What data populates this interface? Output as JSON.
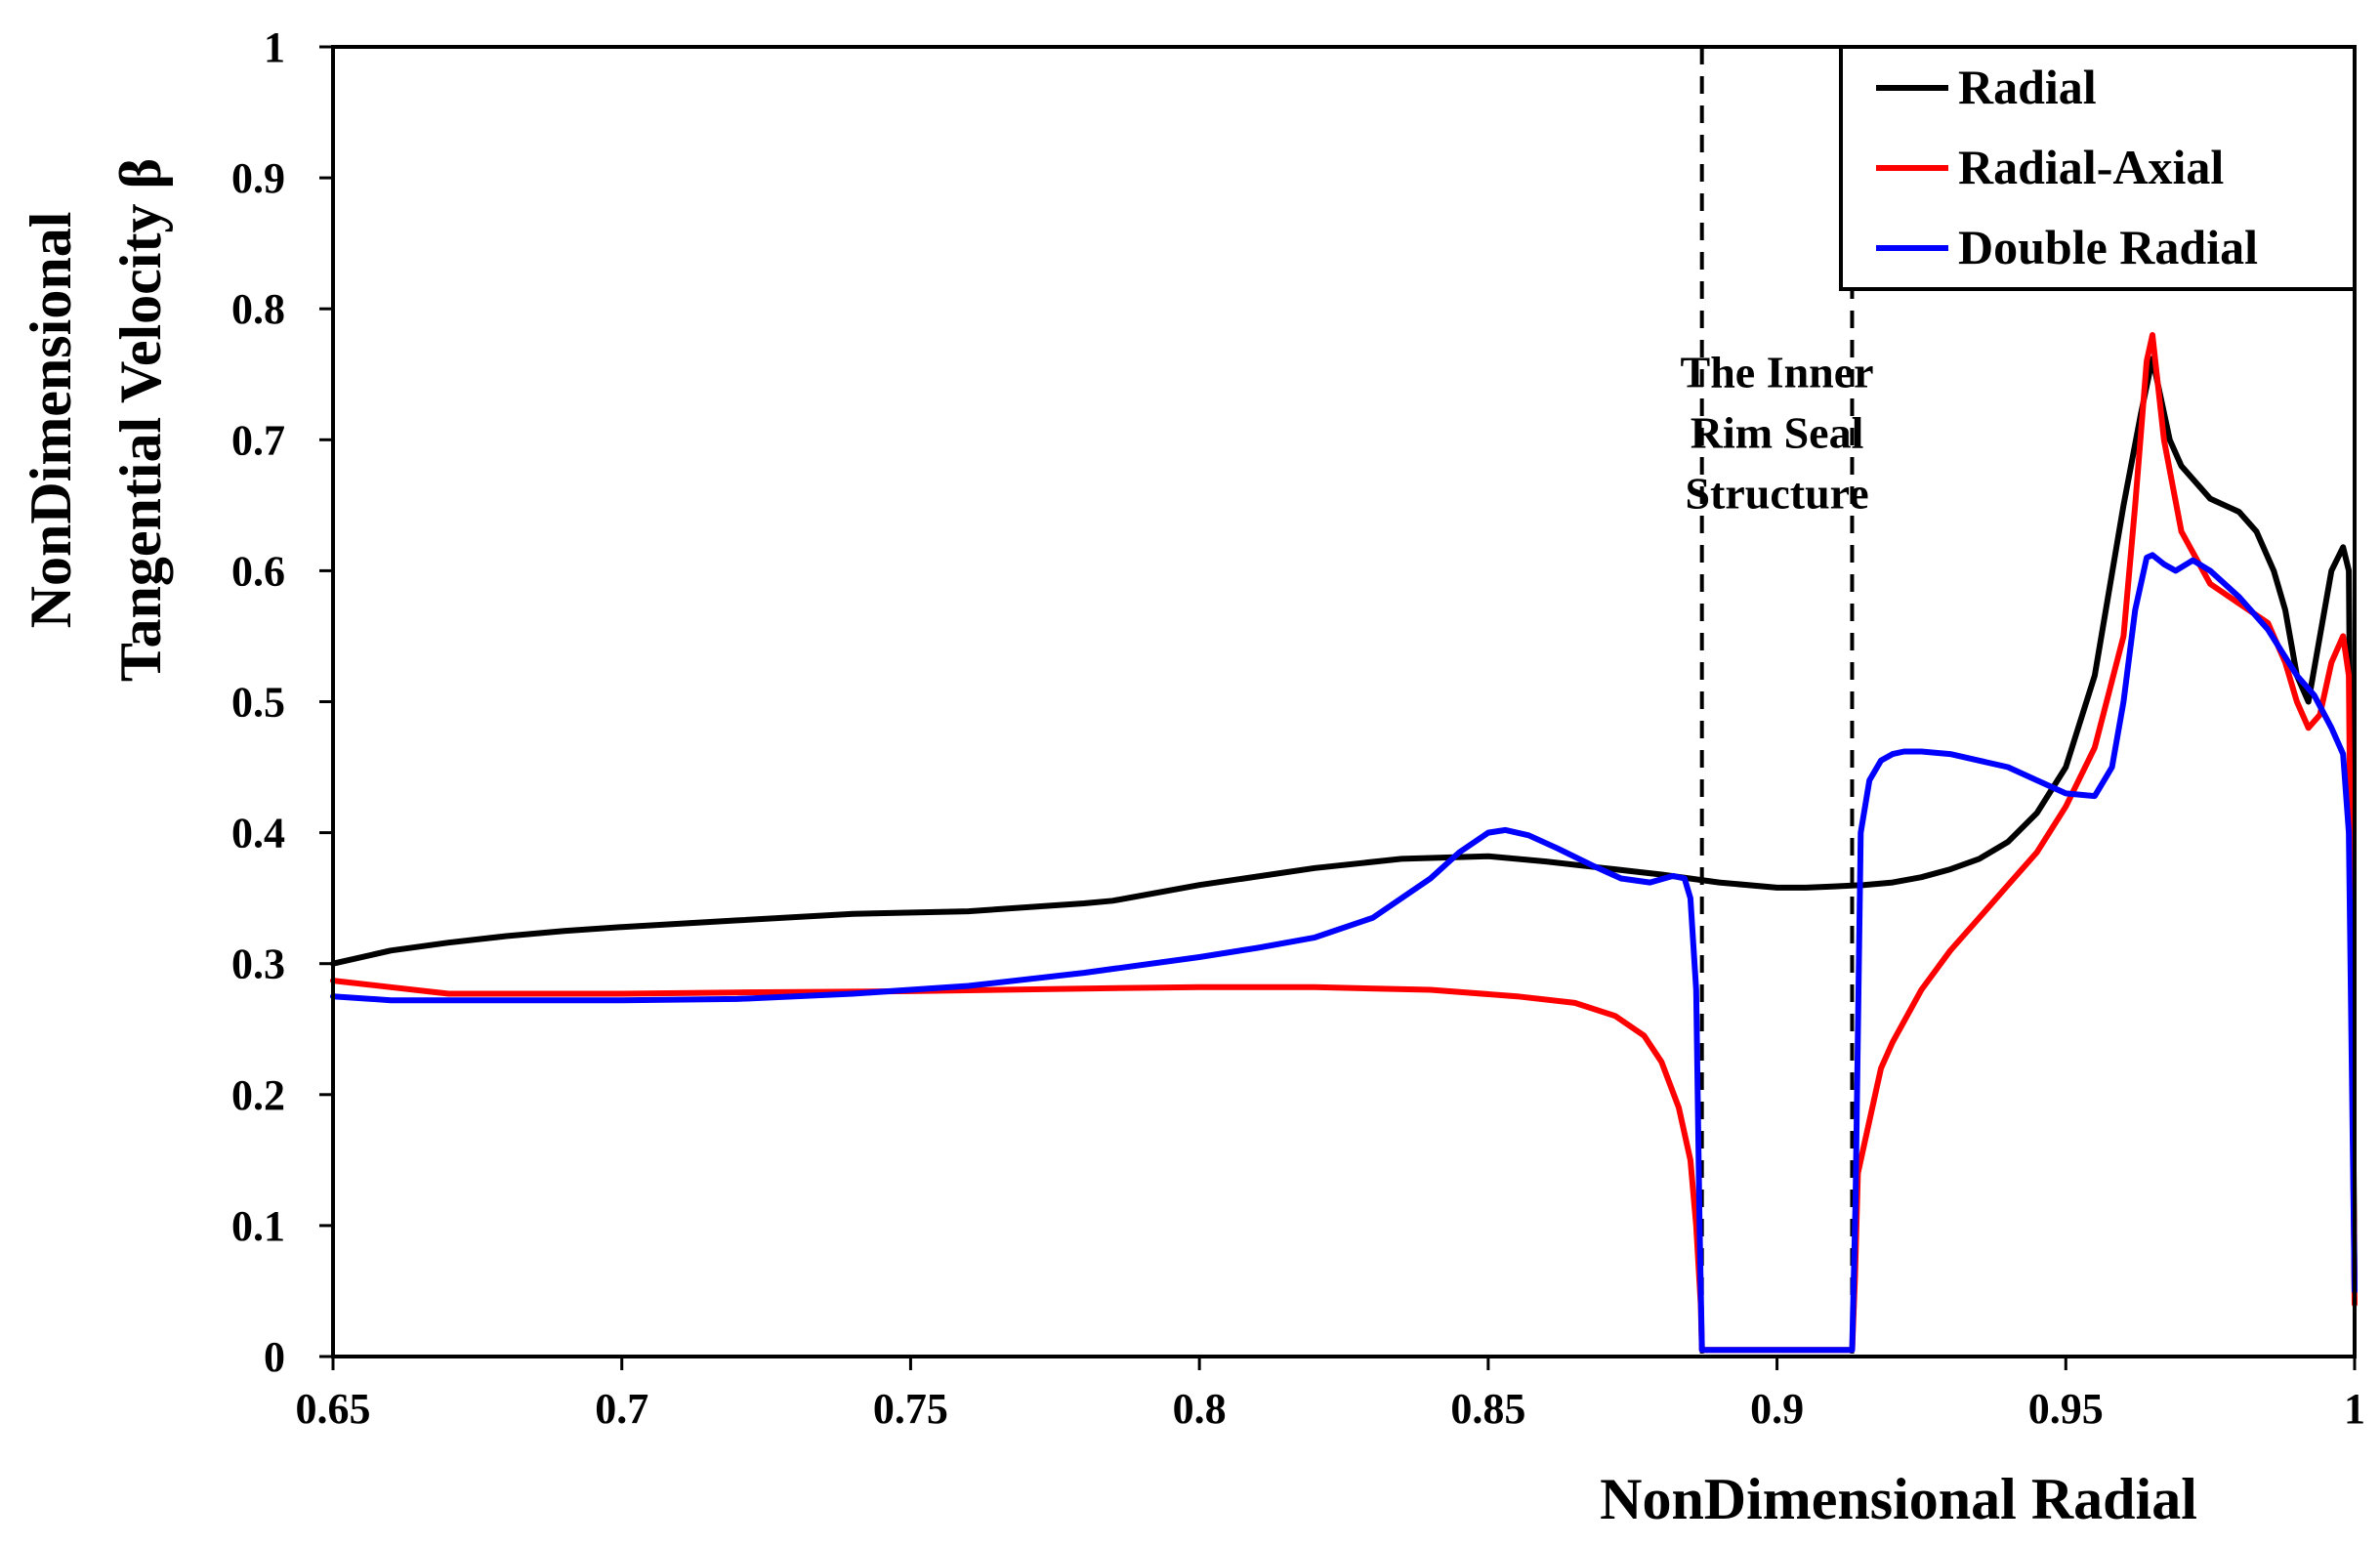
{
  "chart_data": {
    "type": "line",
    "xlabel": "NonDimensional Radial",
    "ylabel_lines": [
      "NonDimensional",
      "Tangential Velocity β"
    ],
    "xlim": [
      0.65,
      1.0
    ],
    "ylim": [
      0,
      1.0
    ],
    "x_ticks": [
      0.65,
      0.7,
      0.75,
      0.8,
      0.85,
      0.9,
      0.95,
      1.0
    ],
    "x_tick_labels": [
      "0.65",
      "0.7",
      "0.75",
      "0.8",
      "0.85",
      "0.9",
      "0.95",
      "1"
    ],
    "y_ticks": [
      0,
      0.1,
      0.2,
      0.3,
      0.4,
      0.5,
      0.6,
      0.7,
      0.8,
      0.9,
      1.0
    ],
    "y_tick_labels": [
      "0",
      "0.1",
      "0.2",
      "0.3",
      "0.4",
      "0.5",
      "0.6",
      "0.7",
      "0.8",
      "0.9",
      "1"
    ],
    "grid": false,
    "legend_position": "top-right",
    "reference_lines": [
      {
        "type": "vertical",
        "x": 0.887,
        "style": "dashed",
        "color": "#000000"
      },
      {
        "type": "vertical",
        "x": 0.913,
        "style": "dashed",
        "color": "#000000"
      }
    ],
    "annotation": {
      "lines": [
        "The Inner",
        "Rim Seal",
        "Structure"
      ],
      "x": 0.9,
      "y_top": 0.74
    },
    "series": [
      {
        "name": "Radial",
        "color": "#000000",
        "x": [
          0.65,
          0.66,
          0.67,
          0.68,
          0.69,
          0.7,
          0.72,
          0.74,
          0.76,
          0.78,
          0.785,
          0.8,
          0.82,
          0.835,
          0.85,
          0.86,
          0.87,
          0.88,
          0.89,
          0.9,
          0.905,
          0.91,
          0.915,
          0.92,
          0.925,
          0.93,
          0.935,
          0.94,
          0.945,
          0.95,
          0.955,
          0.96,
          0.963,
          0.965,
          0.968,
          0.97,
          0.975,
          0.98,
          0.983,
          0.986,
          0.988,
          0.99,
          0.992,
          0.994,
          0.996,
          0.998,
          0.999,
          1.0
        ],
        "y": [
          0.3,
          0.31,
          0.316,
          0.321,
          0.325,
          0.328,
          0.333,
          0.338,
          0.34,
          0.346,
          0.348,
          0.36,
          0.373,
          0.38,
          0.382,
          0.378,
          0.373,
          0.368,
          0.362,
          0.358,
          0.358,
          0.359,
          0.36,
          0.362,
          0.366,
          0.372,
          0.38,
          0.393,
          0.415,
          0.45,
          0.52,
          0.65,
          0.72,
          0.762,
          0.7,
          0.68,
          0.655,
          0.645,
          0.63,
          0.6,
          0.57,
          0.52,
          0.5,
          0.55,
          0.6,
          0.618,
          0.6,
          0.05
        ]
      },
      {
        "name": "Radial-Axial",
        "color": "#ff0000",
        "x": [
          0.65,
          0.66,
          0.67,
          0.68,
          0.7,
          0.72,
          0.75,
          0.78,
          0.8,
          0.82,
          0.84,
          0.855,
          0.865,
          0.872,
          0.877,
          0.88,
          0.883,
          0.885,
          0.886,
          0.8868,
          0.887,
          0.913,
          0.9135,
          0.914,
          0.916,
          0.918,
          0.92,
          0.925,
          0.93,
          0.935,
          0.94,
          0.945,
          0.95,
          0.955,
          0.96,
          0.962,
          0.964,
          0.965,
          0.967,
          0.97,
          0.975,
          0.98,
          0.985,
          0.988,
          0.99,
          0.992,
          0.994,
          0.996,
          0.998,
          0.999,
          1.0
        ],
        "y": [
          0.287,
          0.282,
          0.277,
          0.277,
          0.277,
          0.278,
          0.279,
          0.281,
          0.282,
          0.282,
          0.28,
          0.275,
          0.27,
          0.26,
          0.245,
          0.225,
          0.19,
          0.15,
          0.1,
          0.04,
          0.005,
          0.005,
          0.06,
          0.14,
          0.18,
          0.22,
          0.24,
          0.28,
          0.31,
          0.335,
          0.36,
          0.385,
          0.42,
          0.465,
          0.55,
          0.65,
          0.76,
          0.78,
          0.7,
          0.63,
          0.59,
          0.575,
          0.56,
          0.53,
          0.5,
          0.48,
          0.49,
          0.53,
          0.55,
          0.52,
          0.04
        ]
      },
      {
        "name": "Double Radial",
        "color": "#0000ff",
        "x": [
          0.65,
          0.66,
          0.7,
          0.72,
          0.74,
          0.76,
          0.78,
          0.8,
          0.81,
          0.82,
          0.83,
          0.84,
          0.845,
          0.85,
          0.853,
          0.857,
          0.862,
          0.868,
          0.873,
          0.878,
          0.882,
          0.884,
          0.885,
          0.886,
          0.8866,
          0.887,
          0.913,
          0.9136,
          0.9145,
          0.916,
          0.918,
          0.92,
          0.922,
          0.925,
          0.93,
          0.935,
          0.94,
          0.945,
          0.95,
          0.955,
          0.958,
          0.96,
          0.962,
          0.964,
          0.965,
          0.967,
          0.969,
          0.972,
          0.975,
          0.98,
          0.985,
          0.99,
          0.993,
          0.996,
          0.998,
          0.999,
          1.0
        ],
        "y": [
          0.275,
          0.272,
          0.272,
          0.273,
          0.277,
          0.283,
          0.293,
          0.305,
          0.312,
          0.32,
          0.335,
          0.365,
          0.385,
          0.4,
          0.402,
          0.398,
          0.388,
          0.375,
          0.365,
          0.362,
          0.367,
          0.365,
          0.35,
          0.28,
          0.1,
          0.005,
          0.005,
          0.12,
          0.4,
          0.44,
          0.455,
          0.46,
          0.462,
          0.462,
          0.46,
          0.455,
          0.45,
          0.44,
          0.43,
          0.428,
          0.45,
          0.5,
          0.57,
          0.61,
          0.612,
          0.605,
          0.6,
          0.608,
          0.6,
          0.58,
          0.555,
          0.52,
          0.505,
          0.48,
          0.46,
          0.4,
          0.05
        ]
      }
    ]
  }
}
